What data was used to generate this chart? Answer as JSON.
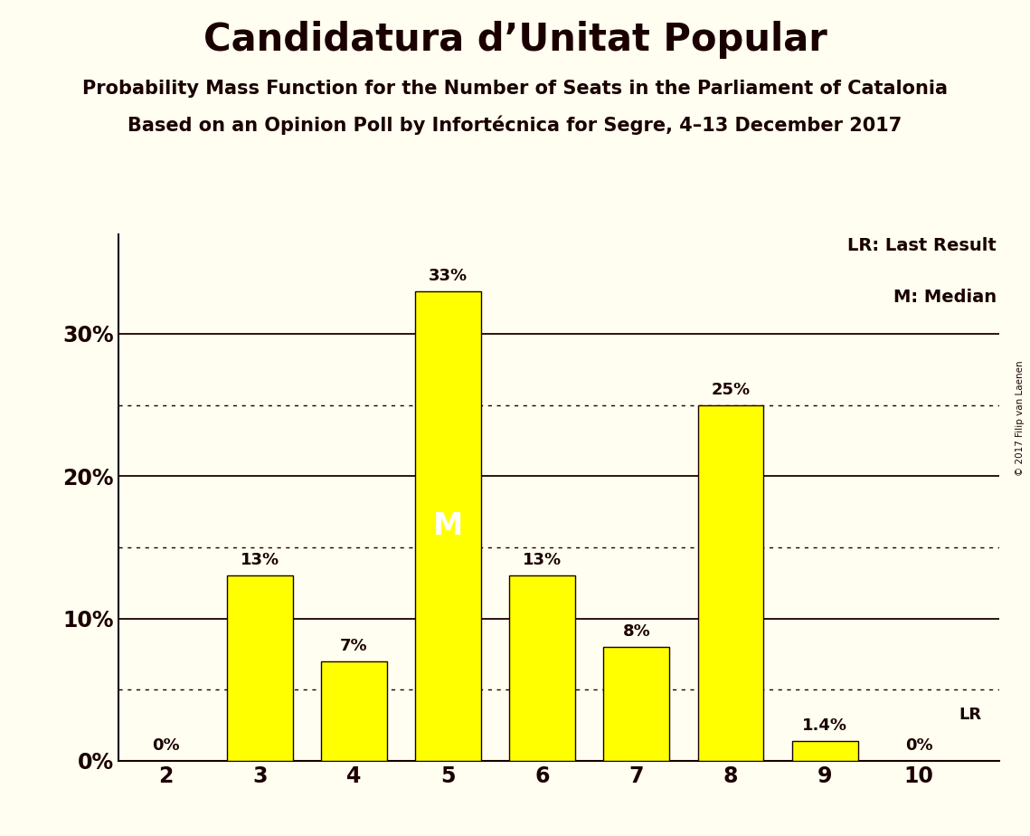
{
  "title": "Candidatura d’Unitat Popular",
  "subtitle1": "Probability Mass Function for the Number of Seats in the Parliament of Catalonia",
  "subtitle2": "Based on an Opinion Poll by Infortécnica for Segre, 4–13 December 2017",
  "copyright": "© 2017 Filip van Laenen",
  "categories": [
    2,
    3,
    4,
    5,
    6,
    7,
    8,
    9,
    10
  ],
  "values": [
    0.0,
    13.0,
    7.0,
    33.0,
    13.0,
    8.0,
    25.0,
    1.4,
    0.0
  ],
  "bar_color": "#FFFF00",
  "bar_edgecolor": "#1a0000",
  "background_color": "#FFFEF0",
  "text_color": "#1a0000",
  "median_seat": 5,
  "last_result_seat": 10,
  "yticks": [
    0,
    10,
    20,
    30
  ],
  "ytick_labels": [
    "0%",
    "10%",
    "20%",
    "30%"
  ],
  "ylim": [
    0,
    37
  ],
  "legend_lr": "LR: Last Result",
  "legend_m": "M: Median",
  "bar_labels": [
    "0%",
    "13%",
    "7%",
    "33%",
    "13%",
    "8%",
    "25%",
    "1.4%",
    "0%"
  ],
  "lr_annotation": "LR",
  "m_annotation": "M",
  "solid_hlines": [
    0,
    10,
    20,
    30
  ],
  "dotted_hlines": [
    5,
    15,
    25
  ]
}
